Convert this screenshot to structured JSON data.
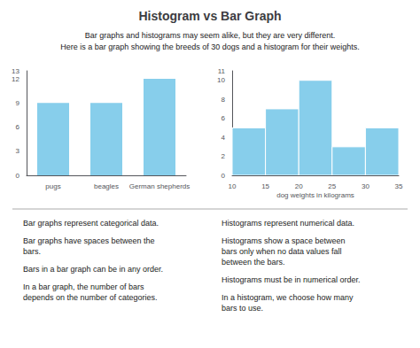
{
  "title": "Histogram vs Bar Graph",
  "subtitle": "Bar graphs and histograms may seem alike, but they are very different.\nHere is a bar graph showing the breeds of 30 dogs and a histogram for their weights.",
  "annotations": [
    "Bar graphs represent categorical data.",
    "Bar graphs have spaces between the\nbars.",
    "Bars in a bar graph can be in any order.",
    "In a bar graph, the number of bars\ndepends on the number of categories.",
    "Histograms represent numerical data.",
    "Histograms show a space between\nbars only when no data values fall\nbetween the bars.",
    "Histograms must be in numerical order.",
    "In a histogram, we choose how many\nbars to use."
  ],
  "chart_data": [
    {
      "type": "bar",
      "categories": [
        "pugs",
        "beagles",
        "German shepherds"
      ],
      "values": [
        9,
        9,
        12
      ],
      "color": "#87CEEB",
      "ylim": [
        0,
        13
      ],
      "yticks": [
        0,
        3,
        6,
        9,
        12
      ],
      "grid": false
    },
    {
      "type": "histogram",
      "bins": [
        10,
        15,
        20,
        25,
        30,
        35
      ],
      "values": [
        5,
        7,
        10,
        3,
        5
      ],
      "color": "#87CEEB",
      "xlim": [
        10,
        35
      ],
      "xticks": [
        10,
        15,
        20,
        25,
        30,
        35
      ],
      "ylim": [
        0,
        11
      ],
      "yticks": [
        0,
        2,
        4,
        6,
        8,
        10
      ],
      "xlabel": "dog weights in kilograms",
      "grid": false
    }
  ]
}
